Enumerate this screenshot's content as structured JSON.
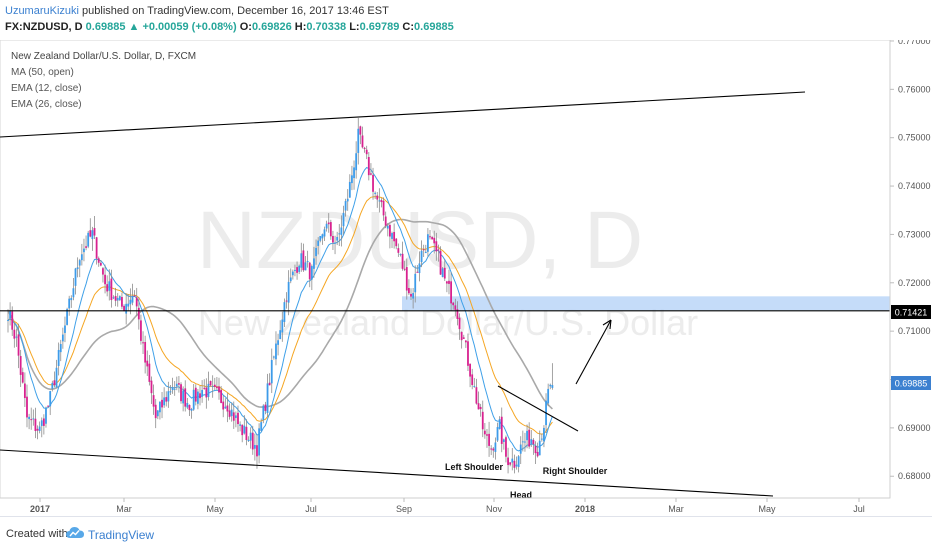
{
  "header": {
    "username": "UzumaruKizuki",
    "published_text": " published on TradingView.com, December 16, 2017 13:46 EST",
    "symbol_line": "FX:NZDUSD, D",
    "last": "0.69885",
    "change": "▲ +0.00059 (+0.08%)",
    "o_label": "O:",
    "o": "0.69826",
    "h_label": "H:",
    "h": "0.70338",
    "l_label": "L:",
    "l": "0.69789",
    "c_label": "C:",
    "c": "0.69885"
  },
  "legend": {
    "title": "New Zealand Dollar/U.S. Dollar, D, FXCM",
    "items": [
      "MA (50, open)",
      "EMA (12, close)",
      "EMA (26, close)"
    ]
  },
  "watermark": {
    "symbol": "NZDUSD, D",
    "name": "New Zealand Dollar/U.S. Dollar"
  },
  "footer": {
    "created_with": "Created with",
    "brand": "TradingView"
  },
  "colors": {
    "bull": "#3d9be9",
    "bear": "#d8218f",
    "ma50": "#a9a9a9",
    "ema12": "#3fa0e8",
    "ema26": "#f5a623",
    "zone": "#b7d3f7",
    "line": "#000000",
    "last_price": "#3b80d0"
  },
  "chart_data": {
    "type": "candlestick",
    "title": "New Zealand Dollar/U.S. Dollar, D, FXCM",
    "timeframe": "D",
    "x_tick_labels": [
      "2017",
      "Mar",
      "May",
      "Jul",
      "Sep",
      "Nov",
      "2018",
      "Mar",
      "May",
      "Jul"
    ],
    "y_tick_labels": [
      "0.77000",
      "0.76000",
      "0.75000",
      "0.74000",
      "0.73000",
      "0.72000",
      "0.71000",
      "0.70000",
      "0.69000",
      "0.68000"
    ],
    "y_range": [
      0.6755,
      0.7702
    ],
    "horizontal_level": {
      "price": 0.71421,
      "label": "0.71421"
    },
    "last_price": {
      "price": 0.69885,
      "label": "0.69885"
    },
    "resistance_zone": [
      0.7143,
      0.7172
    ],
    "annotations": [
      "Left Shoulder",
      "Head",
      "Right Shoulder"
    ],
    "close_path": [
      [
        0,
        0.7142
      ],
      [
        4,
        0.708
      ],
      [
        9,
        0.692
      ],
      [
        15,
        0.6895
      ],
      [
        20,
        0.696
      ],
      [
        28,
        0.713
      ],
      [
        34,
        0.726
      ],
      [
        40,
        0.73
      ],
      [
        46,
        0.72
      ],
      [
        54,
        0.715
      ],
      [
        60,
        0.718
      ],
      [
        64,
        0.706
      ],
      [
        70,
        0.692
      ],
      [
        78,
        0.699
      ],
      [
        86,
        0.695
      ],
      [
        92,
        0.698
      ],
      [
        98,
        0.697
      ],
      [
        104,
        0.695
      ],
      [
        110,
        0.69
      ],
      [
        114,
        0.688
      ],
      [
        118,
        0.686
      ],
      [
        124,
        0.7
      ],
      [
        132,
        0.718
      ],
      [
        138,
        0.725
      ],
      [
        144,
        0.722
      ],
      [
        150,
        0.732
      ],
      [
        156,
        0.728
      ],
      [
        162,
        0.74
      ],
      [
        166,
        0.75
      ],
      [
        170,
        0.745
      ],
      [
        175,
        0.737
      ],
      [
        180,
        0.732
      ],
      [
        186,
        0.725
      ],
      [
        191,
        0.717
      ],
      [
        195,
        0.725
      ],
      [
        199,
        0.729
      ],
      [
        204,
        0.725
      ],
      [
        208,
        0.719
      ],
      [
        212,
        0.716
      ],
      [
        215,
        0.71
      ],
      [
        218,
        0.704
      ],
      [
        222,
        0.696
      ],
      [
        226,
        0.688
      ],
      [
        229,
        0.686
      ],
      [
        233,
        0.69
      ],
      [
        236,
        0.684
      ],
      [
        240,
        0.683
      ],
      [
        244,
        0.687
      ],
      [
        248,
        0.688
      ],
      [
        251,
        0.686
      ],
      [
        254,
        0.691
      ],
      [
        256,
        0.697
      ],
      [
        258,
        0.6988
      ]
    ]
  }
}
